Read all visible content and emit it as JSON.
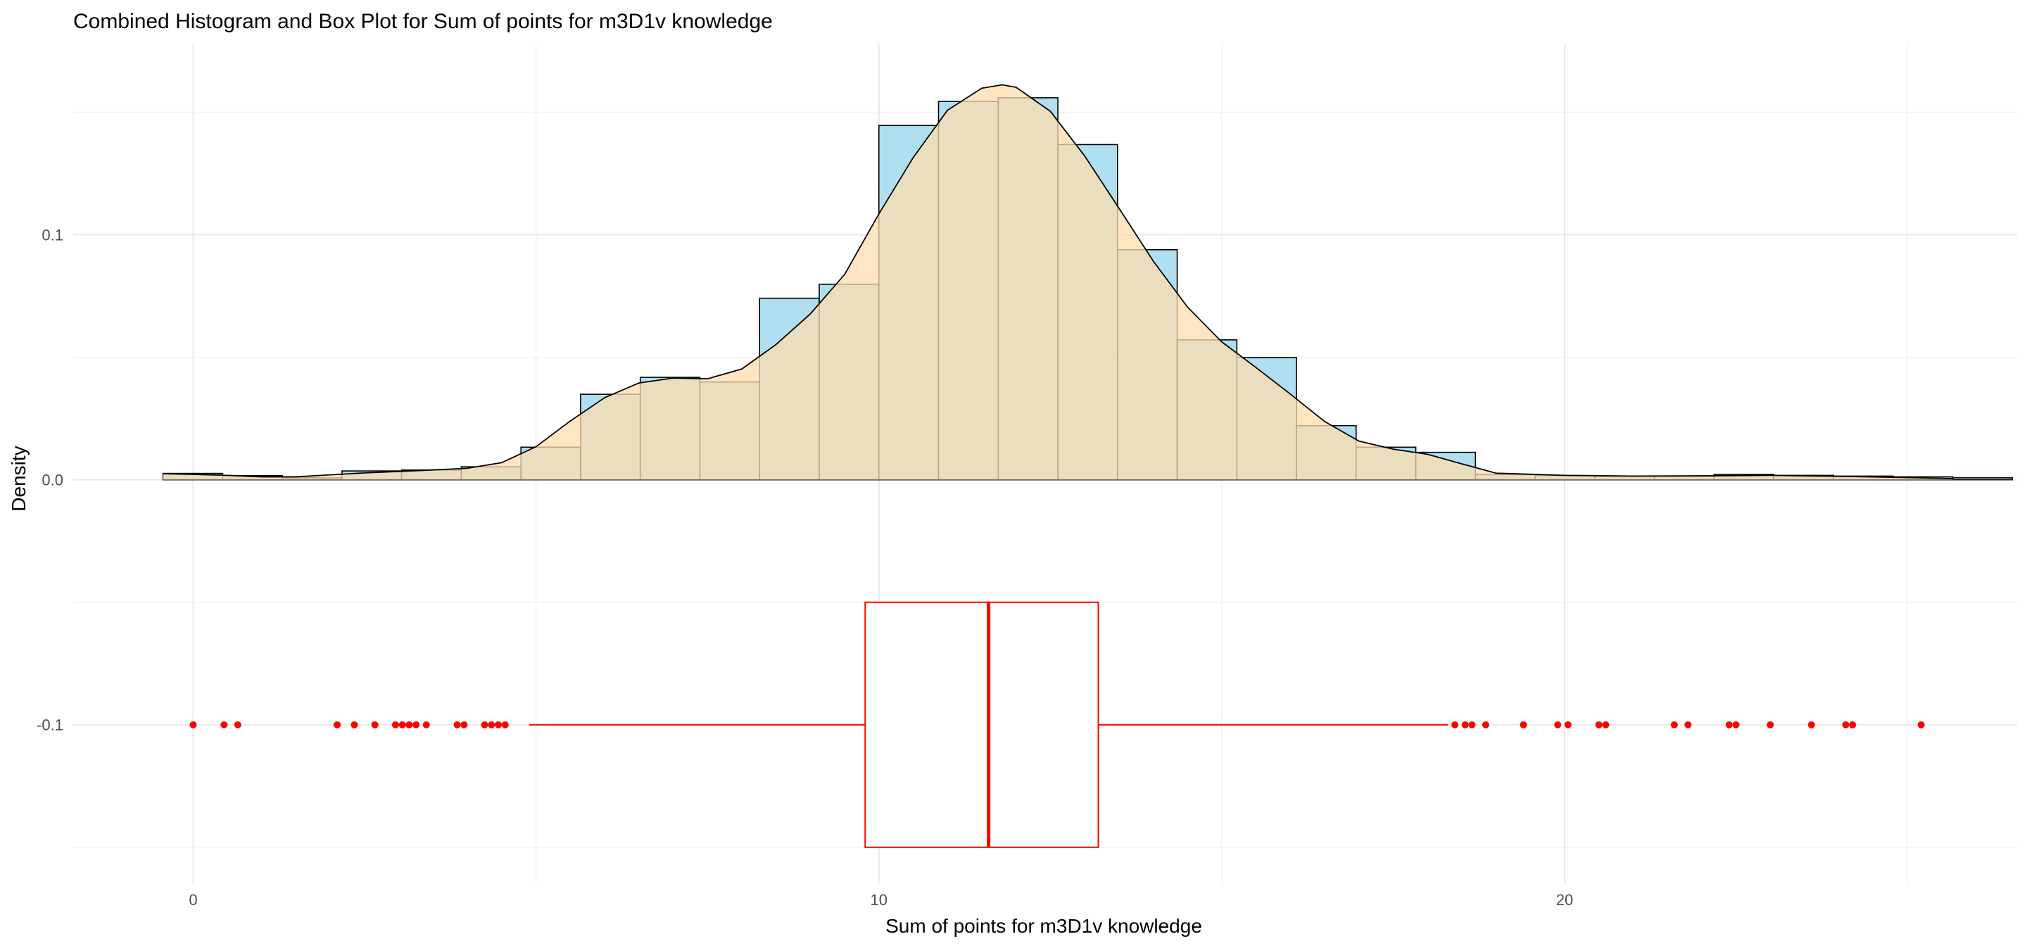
{
  "chart_data": {
    "type": "histogram+boxplot",
    "title": "Combined Histogram and Box Plot for Sum of points for m3D1v knowledge",
    "xlabel": "Sum of points for m3D1v knowledge",
    "ylabel": "Density",
    "xlim": [
      -1.75,
      26.6
    ],
    "ylim": [
      -0.165,
      0.178
    ],
    "x_ticks": [
      0,
      10,
      20
    ],
    "x_tick_labels": [
      "0",
      "10",
      "20"
    ],
    "y_ticks": [
      0.1,
      0.0,
      -0.1
    ],
    "y_tick_labels": [
      "0.1",
      "0.0",
      "-0.1"
    ],
    "grid": true,
    "histogram": {
      "bin_width": 0.87,
      "bin_starts": [
        -0.44,
        0.43,
        1.3,
        2.17,
        3.04,
        3.91,
        4.78,
        5.65,
        6.52,
        7.39,
        8.26,
        9.13,
        10.0,
        10.87,
        11.74,
        12.61,
        13.48,
        14.35,
        15.22,
        16.09,
        16.96,
        17.83,
        18.7,
        19.57,
        20.44,
        21.31,
        22.18,
        23.05,
        23.92,
        24.79,
        25.66
      ],
      "density": [
        0.0026,
        0.0017,
        0.0008,
        0.0036,
        0.004,
        0.0053,
        0.0133,
        0.0349,
        0.0418,
        0.0399,
        0.0741,
        0.0798,
        0.1446,
        0.1544,
        0.1559,
        0.1368,
        0.0939,
        0.0571,
        0.0499,
        0.0221,
        0.0133,
        0.0112,
        0.0021,
        0.0017,
        0.0015,
        0.0015,
        0.0022,
        0.0018,
        0.0015,
        0.0012,
        0.0008
      ],
      "fill": "#87CEEB",
      "fill_opacity": 0.65,
      "stroke": "#000000"
    },
    "density_curve": {
      "x": [
        -0.44,
        0.5,
        1.0,
        1.5,
        2.0,
        2.5,
        3.0,
        3.5,
        4.0,
        4.5,
        5.0,
        5.5,
        6.0,
        6.5,
        7.0,
        7.5,
        8.0,
        8.5,
        9.0,
        9.5,
        10.0,
        10.5,
        11.0,
        11.5,
        11.8,
        12.0,
        12.5,
        13.0,
        13.5,
        14.0,
        14.5,
        15.0,
        15.5,
        16.0,
        16.5,
        17.0,
        17.5,
        18.0,
        18.5,
        19.0,
        20.0,
        21.0,
        22.0,
        23.0,
        24.0,
        25.0,
        25.66
      ],
      "y": [
        0.0025,
        0.0018,
        0.0012,
        0.0012,
        0.002,
        0.0028,
        0.0034,
        0.004,
        0.0047,
        0.007,
        0.0135,
        0.024,
        0.0335,
        0.0395,
        0.0415,
        0.0412,
        0.0452,
        0.0552,
        0.0677,
        0.0838,
        0.1085,
        0.1315,
        0.1508,
        0.1598,
        0.1612,
        0.1602,
        0.1504,
        0.1322,
        0.1109,
        0.0893,
        0.0705,
        0.0563,
        0.0458,
        0.035,
        0.0238,
        0.0158,
        0.0125,
        0.0104,
        0.0065,
        0.0027,
        0.0018,
        0.0015,
        0.0016,
        0.0018,
        0.0014,
        0.0009,
        0.0005
      ],
      "fill": "#FFDEAD",
      "fill_opacity": 0.75,
      "stroke": "#000000"
    },
    "boxplot": {
      "y_position": -0.1,
      "half_height": 0.05,
      "q1": 9.8,
      "median": 11.6,
      "q3": 13.2,
      "whisker_low": 4.9,
      "whisker_high": 18.3,
      "outliers": [
        0.0,
        0.45,
        0.65,
        2.1,
        2.35,
        2.65,
        2.95,
        3.05,
        3.15,
        3.25,
        3.4,
        3.85,
        3.95,
        4.25,
        4.35,
        4.45,
        4.55,
        18.4,
        18.55,
        18.65,
        18.85,
        19.4,
        19.9,
        20.05,
        20.5,
        20.6,
        21.6,
        21.8,
        22.4,
        22.5,
        23.0,
        23.6,
        24.1,
        24.2,
        25.2
      ],
      "color": "#FF0000"
    }
  }
}
